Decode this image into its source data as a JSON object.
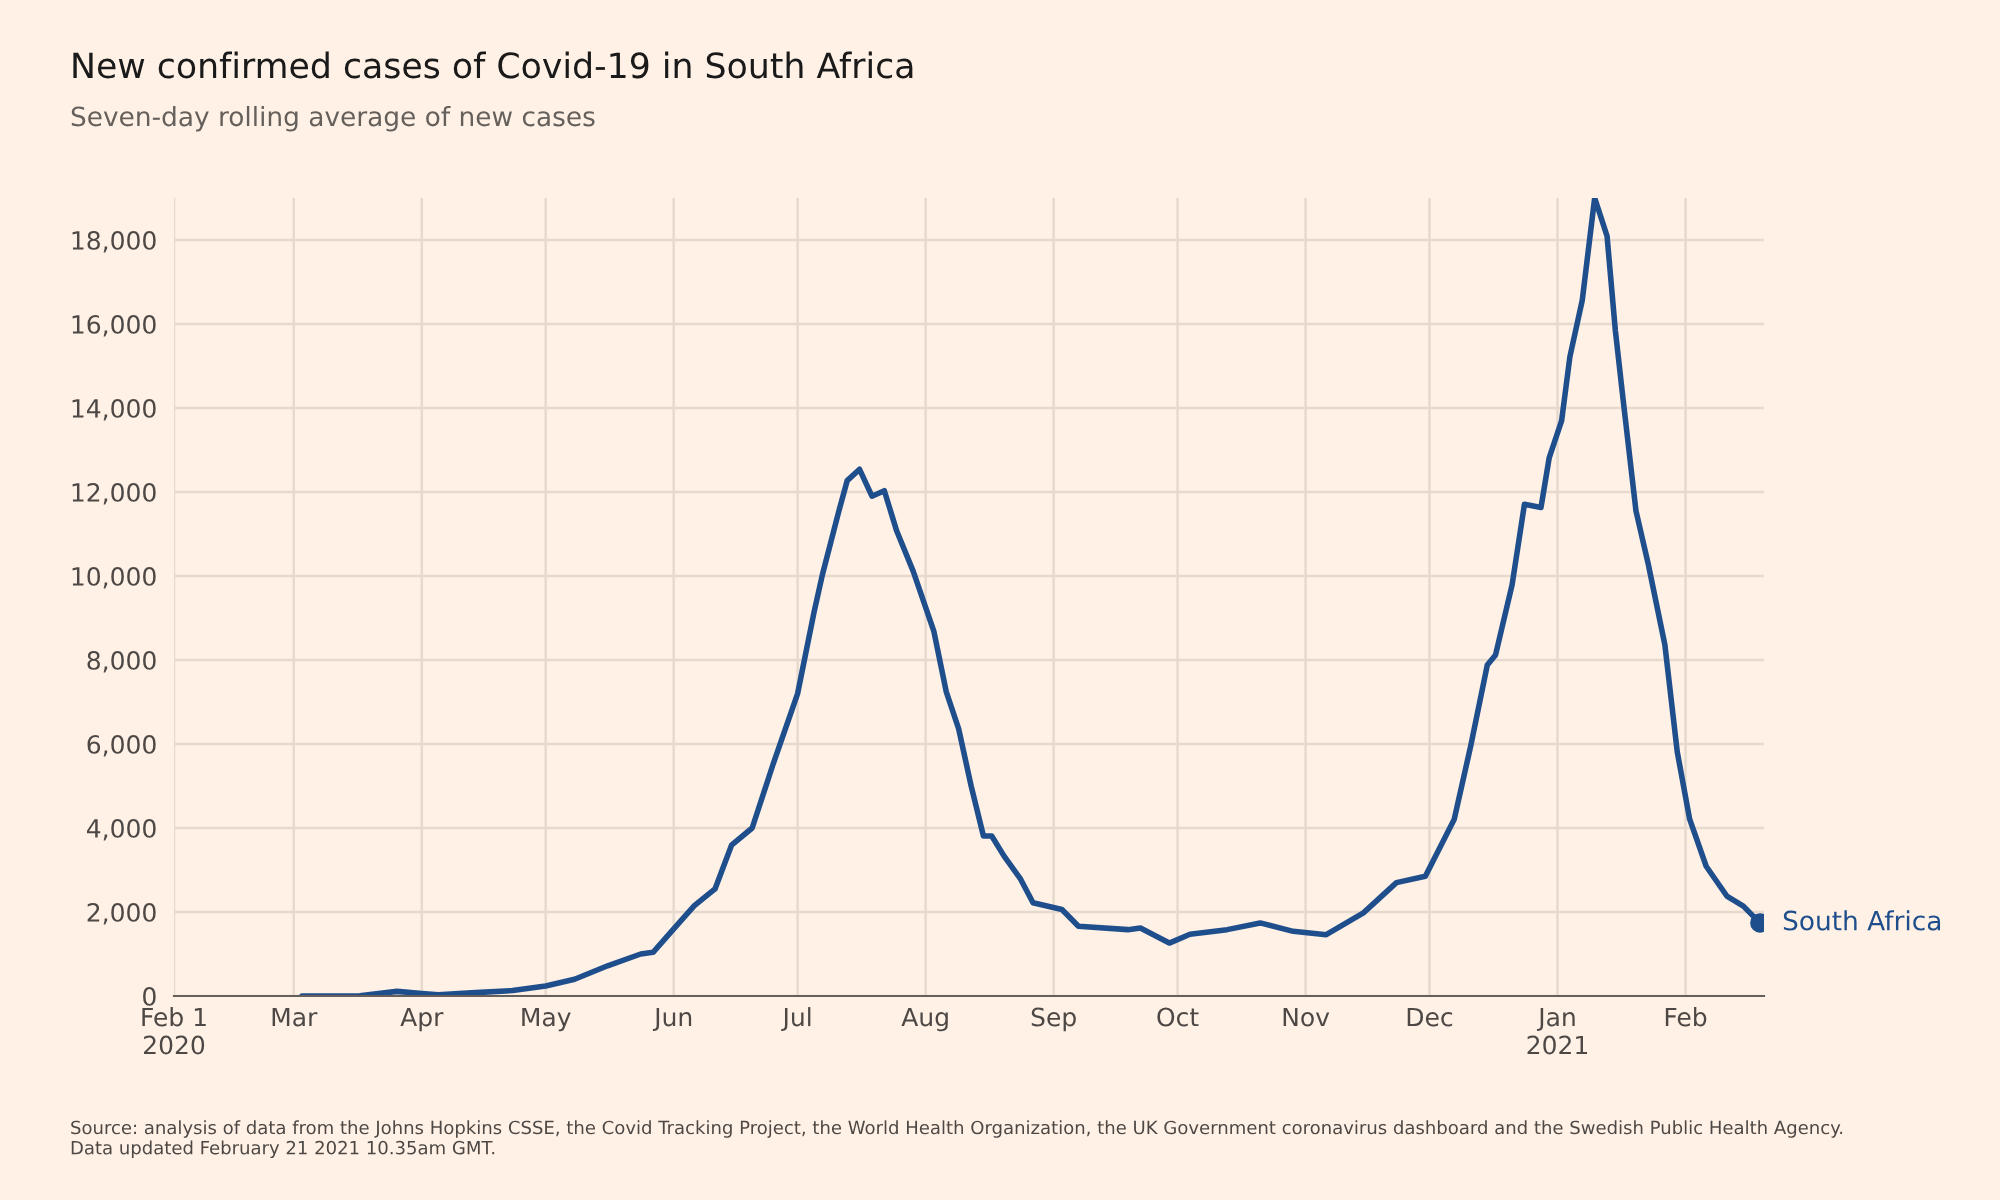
{
  "chart_data": {
    "type": "line",
    "title": "New confirmed cases of Covid-19 in South Africa",
    "subtitle": "Seven-day rolling average of new cases",
    "series": [
      {
        "name": "South Africa",
        "color": "#1f4e8c",
        "x": [
          "2020-03-03",
          "2020-03-17",
          "2020-03-26",
          "2020-04-01",
          "2020-04-05",
          "2020-04-14",
          "2020-04-23",
          "2020-05-01",
          "2020-05-08",
          "2020-05-16",
          "2020-05-24",
          "2020-05-27",
          "2020-06-01",
          "2020-06-06",
          "2020-06-11",
          "2020-06-15",
          "2020-06-20",
          "2020-06-25",
          "2020-07-01",
          "2020-07-05",
          "2020-07-07",
          "2020-07-11",
          "2020-07-13",
          "2020-07-16",
          "2020-07-19",
          "2020-07-22",
          "2020-07-25",
          "2020-07-29",
          "2020-08-03",
          "2020-08-06",
          "2020-08-09",
          "2020-08-12",
          "2020-08-15",
          "2020-08-17",
          "2020-08-20",
          "2020-08-24",
          "2020-08-27",
          "2020-09-03",
          "2020-09-07",
          "2020-09-19",
          "2020-09-22",
          "2020-09-29",
          "2020-10-04",
          "2020-10-13",
          "2020-10-21",
          "2020-10-29",
          "2020-11-06",
          "2020-11-15",
          "2020-11-23",
          "2020-11-30",
          "2020-12-07",
          "2020-12-11",
          "2020-12-15",
          "2020-12-17",
          "2020-12-21",
          "2020-12-24",
          "2020-12-28",
          "2020-12-30",
          "2021-01-02",
          "2021-01-04",
          "2021-01-07",
          "2021-01-10",
          "2021-01-13",
          "2021-01-15",
          "2021-01-17",
          "2021-01-20",
          "2021-01-23",
          "2021-01-27",
          "2021-01-30",
          "2021-02-02",
          "2021-02-06",
          "2021-02-11",
          "2021-02-15",
          "2021-02-19"
        ],
        "values": [
          0,
          5,
          110,
          60,
          30,
          80,
          130,
          240,
          400,
          720,
          1000,
          1040,
          1600,
          2150,
          2550,
          3590,
          4000,
          5500,
          7200,
          9150,
          10030,
          11550,
          12270,
          12540,
          11900,
          12030,
          11070,
          10110,
          8680,
          7240,
          6360,
          5010,
          3810,
          3810,
          3330,
          2780,
          2220,
          2060,
          1660,
          1580,
          1620,
          1260,
          1470,
          1580,
          1740,
          1540,
          1460,
          1980,
          2700,
          2850,
          4210,
          5960,
          7880,
          8120,
          9790,
          11710,
          11630,
          12820,
          13700,
          15220,
          16570,
          19000,
          18090,
          15850,
          14100,
          11550,
          10270,
          8360,
          5810,
          4210,
          3090,
          2380,
          2140,
          1740
        ]
      }
    ],
    "xlim": [
      "2020-02-01",
      "2021-02-20"
    ],
    "xticks": [
      {
        "value": "2020-02-01",
        "label": "Feb 1\n2020"
      },
      {
        "value": "2020-03-01",
        "label": "Mar"
      },
      {
        "value": "2020-04-01",
        "label": "Apr"
      },
      {
        "value": "2020-05-01",
        "label": "May"
      },
      {
        "value": "2020-06-01",
        "label": "Jun"
      },
      {
        "value": "2020-07-01",
        "label": "Jul"
      },
      {
        "value": "2020-08-01",
        "label": "Aug"
      },
      {
        "value": "2020-09-01",
        "label": "Sep"
      },
      {
        "value": "2020-10-01",
        "label": "Oct"
      },
      {
        "value": "2020-11-01",
        "label": "Nov"
      },
      {
        "value": "2020-12-01",
        "label": "Dec"
      },
      {
        "value": "2021-01-01",
        "label": "Jan\n2021"
      },
      {
        "value": "2021-02-01",
        "label": "Feb"
      }
    ],
    "ylim": [
      0,
      19000
    ],
    "yticks": [
      {
        "value": 0,
        "label": "0"
      },
      {
        "value": 2000,
        "label": "2,000"
      },
      {
        "value": 4000,
        "label": "4,000"
      },
      {
        "value": 6000,
        "label": "6,000"
      },
      {
        "value": 8000,
        "label": "8,000"
      },
      {
        "value": 10000,
        "label": "10,000"
      },
      {
        "value": 12000,
        "label": "12,000"
      },
      {
        "value": 14000,
        "label": "14,000"
      },
      {
        "value": 16000,
        "label": "16,000"
      },
      {
        "value": 18000,
        "label": "18,000"
      }
    ],
    "grid": true,
    "legend": false,
    "annotations": [
      "Source: analysis of data from the Johns Hopkins CSSE, the Covid Tracking Project, the World Health Organization, the UK Government coronavirus dashboard and the Swedish Public Health Agency.\nData updated February 21 2021 10.35am GMT."
    ]
  }
}
